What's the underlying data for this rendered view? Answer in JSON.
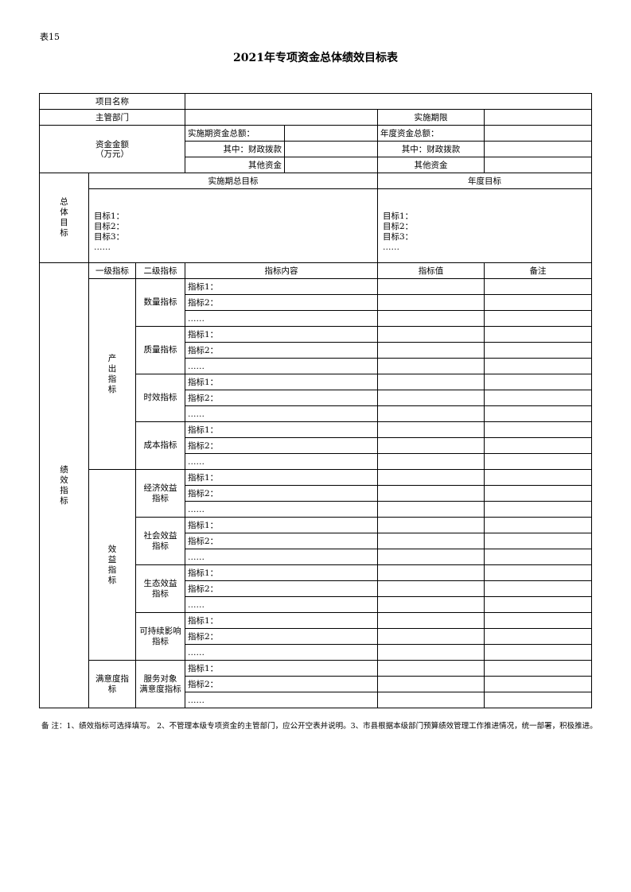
{
  "table_no": "表15",
  "title": "2021年专项资金总体绩效目标表",
  "header": {
    "project_name_label": "项目名称",
    "department_label": "主管部门",
    "period_label": "实施期限",
    "funds_label": "资金金额\n（万元）",
    "period_total_label": "实施期资金总额：",
    "annual_total_label": "年度资金总额：",
    "fiscal_label": "其中：财政拨款",
    "other_label": "其他资金"
  },
  "goals": {
    "section_label": "总\n体\n目\n标",
    "period_goal_label": "实施期总目标",
    "annual_goal_label": "年度目标",
    "period_goal_text": "目标1：\n目标2：\n目标3：\n……",
    "annual_goal_text": "目标1：\n目标2：\n目标3：\n……"
  },
  "indicators": {
    "section_label": "绩\n效\n指\n标",
    "col_level1": "一级指标",
    "col_level2": "二级指标",
    "col_content": "指标内容",
    "col_value": "指标值",
    "col_remark": "备注",
    "groups": [
      {
        "label": "产\n出\n指\n标",
        "subs": [
          {
            "label": "数量指标",
            "items": [
              "指标1：",
              "指标2：",
              "……"
            ]
          },
          {
            "label": "质量指标",
            "items": [
              "指标1：",
              "指标2：",
              "……"
            ]
          },
          {
            "label": "时效指标",
            "items": [
              "指标1：",
              "指标2：",
              "……"
            ]
          },
          {
            "label": "成本指标",
            "items": [
              "指标1：",
              "指标2：",
              "……"
            ]
          }
        ]
      },
      {
        "label": "效\n益\n指\n标",
        "subs": [
          {
            "label": "经济效益\n指标",
            "items": [
              "指标1：",
              "指标2：",
              "……"
            ]
          },
          {
            "label": "社会效益\n指标",
            "items": [
              "指标1：",
              "指标2：",
              "……"
            ]
          },
          {
            "label": "生态效益\n指标",
            "items": [
              "指标1：",
              "指标2：",
              "……"
            ]
          },
          {
            "label": "可持续影响\n指标",
            "items": [
              "指标1：",
              "指标2：",
              "……"
            ]
          }
        ]
      },
      {
        "label": "满意度指\n标",
        "subs": [
          {
            "label": "服务对象\n满意度指标",
            "items": [
              "指标1：",
              "指标2：",
              "……"
            ]
          }
        ]
      }
    ]
  },
  "footnote": "备  注：1、绩效指标可选择填写。  2、不管理本级专项资金的主管部门，应公开空表并说明。3、市县根据本级部门预算绩效管理工作推进情况，统一部署，积极推进。"
}
